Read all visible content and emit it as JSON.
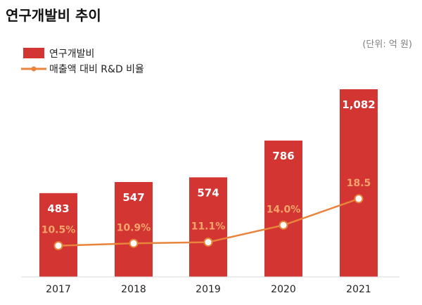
{
  "header": {
    "title": "연구개발비 추이",
    "unit": "(단위: 억 원)"
  },
  "colors": {
    "bar": "#d23532",
    "line": "#e8843c",
    "pct_label": "#f4a46a",
    "marker_fill": "#ffffff"
  },
  "chart_data": {
    "type": "bar",
    "title": "연구개발비 추이",
    "unit": "(단위: 억 원)",
    "categories": [
      "2017",
      "2018",
      "2019",
      "2020",
      "2021"
    ],
    "series": [
      {
        "name": "연구개발비",
        "type": "bar",
        "values": [
          483,
          547,
          574,
          786,
          1082
        ],
        "labels": [
          "483",
          "547",
          "574",
          "786",
          "1,082"
        ]
      },
      {
        "name": "매출액 대비 R&D 비율",
        "type": "line",
        "values": [
          10.5,
          10.9,
          11.1,
          14.0,
          18.5
        ],
        "labels": [
          "10.5%",
          "10.9%",
          "11.1%",
          "14.0%",
          "18.5"
        ]
      }
    ],
    "legend": "top-left",
    "grid": false
  }
}
